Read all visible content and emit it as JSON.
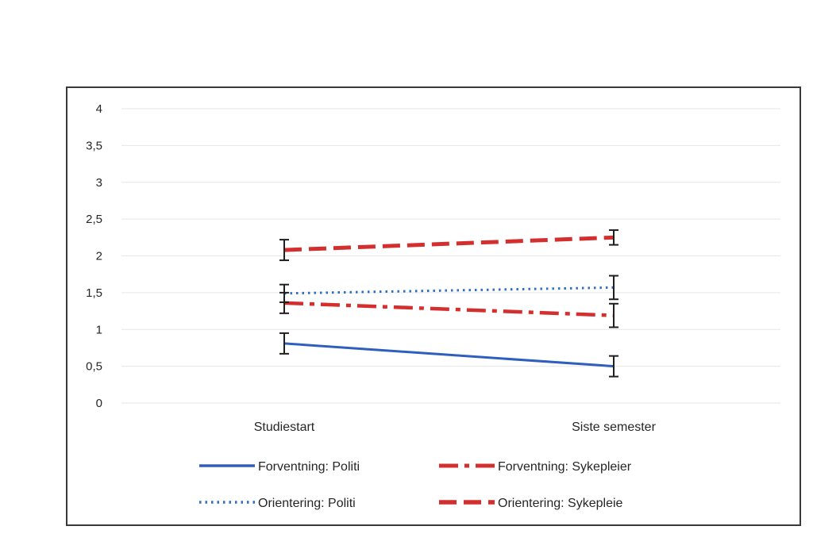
{
  "chart_data": {
    "type": "line",
    "title": "",
    "xlabel": "",
    "ylabel": "",
    "categories": [
      "Studiestart",
      "Siste semester"
    ],
    "ylim": [
      0,
      4
    ],
    "yticks": [
      0,
      0.5,
      1,
      1.5,
      2,
      2.5,
      3,
      3.5,
      4
    ],
    "ytick_labels": [
      "0",
      "0,5",
      "1",
      "1,5",
      "2",
      "2,5",
      "3",
      "3,5",
      "4"
    ],
    "grid": true,
    "legend_position": "bottom",
    "series": [
      {
        "name": "Forventning: Politi",
        "values": [
          0.81,
          0.5
        ],
        "error": [
          0.14,
          0.14
        ],
        "color": "#2e5fbd",
        "dash": "solid"
      },
      {
        "name": "Forventning: Sykepleier",
        "values": [
          1.36,
          1.19
        ],
        "error": [
          0.14,
          0.16
        ],
        "color": "#d32f2f",
        "dash": "dashdot"
      },
      {
        "name": "Orientering: Politi",
        "values": [
          1.49,
          1.57
        ],
        "error": [
          0.12,
          0.16
        ],
        "color": "#2e6fc6",
        "dash": "dotted"
      },
      {
        "name": "Orientering: Sykepleie",
        "values": [
          2.08,
          2.25
        ],
        "error": [
          0.14,
          0.1
        ],
        "color": "#d32f2f",
        "dash": "dashed"
      }
    ]
  }
}
